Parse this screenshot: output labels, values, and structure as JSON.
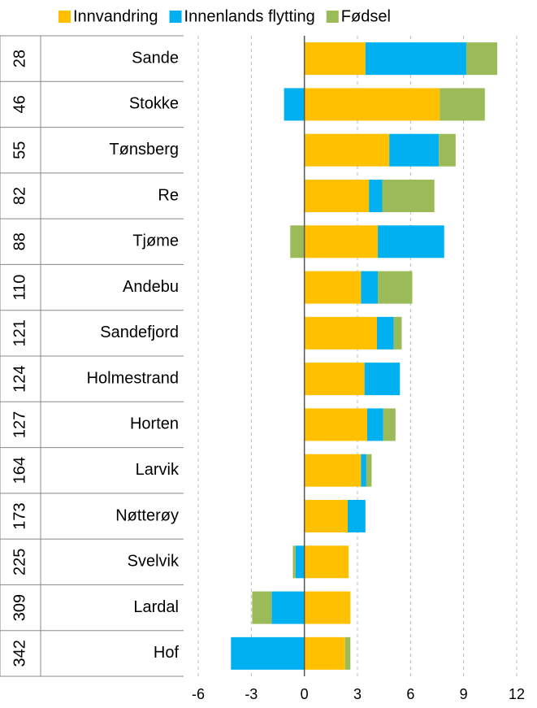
{
  "chart_data": {
    "type": "bar",
    "orientation": "horizontal",
    "stacked": true,
    "categories": [
      "Sande",
      "Stokke",
      "Tønsberg",
      "Re",
      "Tjøme",
      "Andebu",
      "Sandefjord",
      "Holmestrand",
      "Horten",
      "Larvik",
      "Nøtterøy",
      "Svelvik",
      "Lardal",
      "Hof"
    ],
    "ranks": [
      28,
      46,
      55,
      82,
      88,
      110,
      121,
      124,
      127,
      164,
      173,
      225,
      309,
      342
    ],
    "series": [
      {
        "name": "Innvandring",
        "color": "#FFC000",
        "values": [
          3.45,
          7.65,
          4.8,
          3.65,
          4.15,
          3.2,
          4.1,
          3.4,
          3.55,
          3.2,
          2.45,
          2.5,
          2.6,
          2.3
        ]
      },
      {
        "name": "Innenlands flytting",
        "color": "#00B0F0",
        "values": [
          5.7,
          -1.15,
          2.8,
          0.75,
          3.75,
          0.95,
          0.95,
          2.0,
          0.9,
          0.3,
          1.0,
          -0.5,
          -1.85,
          -4.15
        ]
      },
      {
        "name": "Fødsel",
        "color": "#9BBB59",
        "values": [
          1.75,
          2.55,
          0.95,
          2.95,
          -0.8,
          1.95,
          0.45,
          0,
          0.7,
          0.3,
          0,
          -0.15,
          -1.1,
          0.3
        ]
      }
    ],
    "xlim": [
      -6,
      12
    ],
    "xticks": [
      -6,
      -3,
      0,
      3,
      6,
      9,
      12
    ],
    "grid": true,
    "legend": "top"
  }
}
